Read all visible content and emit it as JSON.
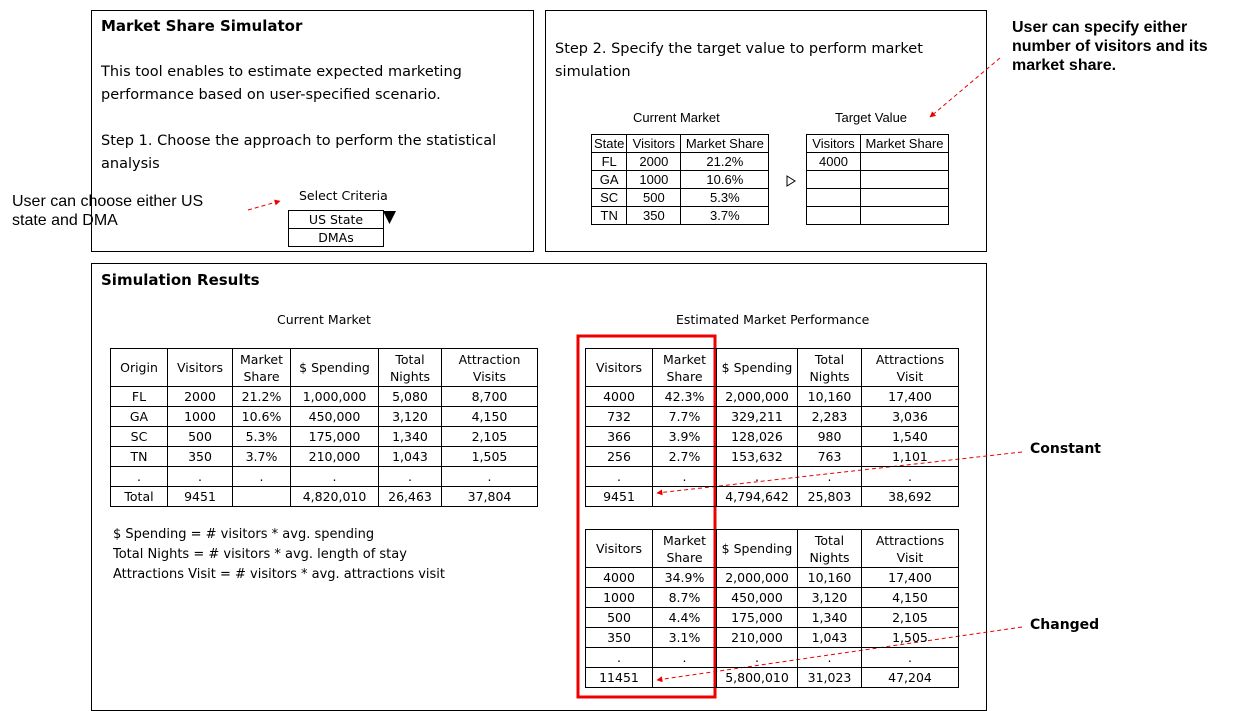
{
  "setup": {
    "title": "Market Share Simulator",
    "intro": "This tool enables to estimate expected marketing performance based on user-specified scenario.",
    "step1": "Step 1. Choose the approach to perform the statistical analysis",
    "select_label": "Select Criteria",
    "options": [
      "US State",
      "DMAs"
    ]
  },
  "target": {
    "step2": "Step 2. Specify the target value to perform market simulation",
    "current_title": "Current Market",
    "current_table": {
      "headers": [
        "State",
        "Visitors",
        "Market Share"
      ],
      "rows": [
        [
          "FL",
          "2000",
          "21.2%"
        ],
        [
          "GA",
          "1000",
          "10.6%"
        ],
        [
          "SC",
          "500",
          "5.3%"
        ],
        [
          "TN",
          "350",
          "3.7%"
        ]
      ]
    },
    "target_title": "Target Value",
    "target_table": {
      "headers": [
        "Visitors",
        "Market Share"
      ],
      "rows": [
        [
          "4000"
        ]
      ]
    }
  },
  "results": {
    "title": "Simulation Results",
    "current_title": "Current Market",
    "estimated_title": "Estimated Market Performance",
    "current_table": {
      "headers": [
        "Origin",
        "Visitors",
        "Market Share",
        "$ Spending",
        "Total Nights",
        "Attraction Visits"
      ],
      "rows": [
        [
          "FL",
          "2000",
          "21.2%",
          "1,000,000",
          "5,080",
          "8,700"
        ],
        [
          "GA",
          "1000",
          "10.6%",
          "450,000",
          "3,120",
          "4,150"
        ],
        [
          "SC",
          "500",
          "5.3%",
          "175,000",
          "1,340",
          "2,105"
        ],
        [
          "TN",
          "350",
          "3.7%",
          "210,000",
          "1,043",
          "1,505"
        ],
        [
          ".",
          ".",
          ".",
          ".",
          ".",
          "."
        ],
        [
          "Total",
          "9451",
          null,
          "4,820,010",
          "26,463",
          "37,804"
        ]
      ]
    },
    "formulas": [
      "$ Spending = # visitors * avg. spending",
      "Total Nights = # visitors * avg. length of stay",
      "Attractions Visit = # visitors * avg. attractions visit"
    ],
    "constant_table": {
      "headers": [
        "Visitors",
        "Market Share",
        "$ Spending",
        "Total Nights",
        "Attractions Visit"
      ],
      "rows": [
        [
          "4000",
          "42.3%",
          "2,000,000",
          "10,160",
          "17,400"
        ],
        [
          "732",
          "7.7%",
          "329,211",
          "2,283",
          "3,036"
        ],
        [
          "366",
          "3.9%",
          "128,026",
          "980",
          "1,540"
        ],
        [
          "256",
          "2.7%",
          "153,632",
          "763",
          "1,101"
        ],
        [
          ".",
          ".",
          ".",
          ".",
          "."
        ],
        [
          "9451",
          null,
          "4,794,642",
          "25,803",
          "38,692"
        ]
      ]
    },
    "changed_table": {
      "headers": [
        "Visitors",
        "Market Share",
        "$ Spending",
        "Total Nights",
        "Attractions Visit"
      ],
      "rows": [
        [
          "4000",
          "34.9%",
          "2,000,000",
          "10,160",
          "17,400"
        ],
        [
          "1000",
          "8.7%",
          "450,000",
          "3,120",
          "4,150"
        ],
        [
          "500",
          "4.4%",
          "175,000",
          "1,340",
          "2,105"
        ],
        [
          "350",
          "3.1%",
          "210,000",
          "1,043",
          "1,505"
        ],
        [
          ".",
          ".",
          ".",
          ".",
          "."
        ],
        [
          "11451",
          null,
          "5,800,010",
          "31,023",
          "47,204"
        ]
      ]
    }
  },
  "annotations": {
    "criteria": "User can choose either US state and DMA",
    "target": "User can specify either number of visitors and its market share.",
    "constant": "Constant",
    "changed": "Changed"
  }
}
